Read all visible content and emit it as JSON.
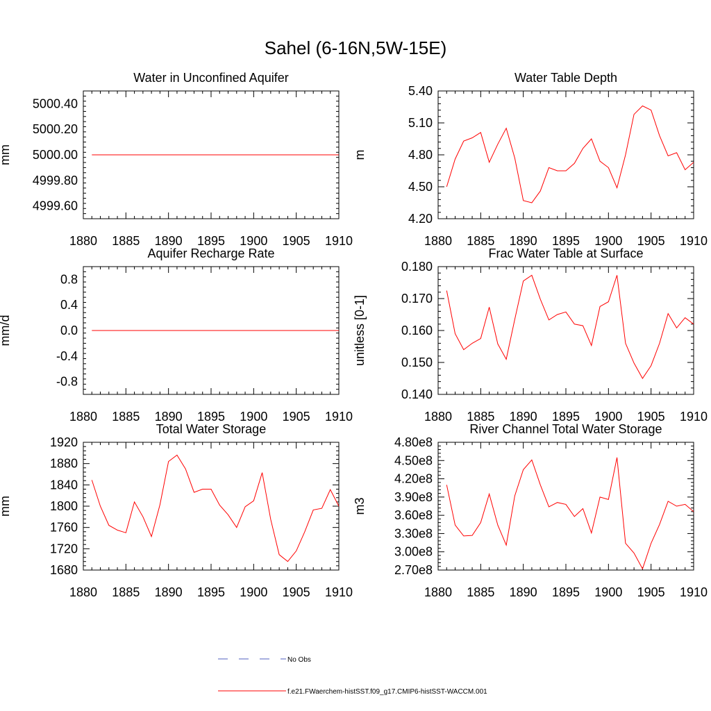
{
  "title": "Sahel (6-16N,5W-15E)",
  "colors": {
    "model": "#ff0000",
    "obs": "#4f5fbf",
    "axis": "#000000"
  },
  "chart_data": [
    {
      "type": "line",
      "title": "Water in Unconfined Aquifer",
      "ylabel": "mm",
      "xlim": [
        1880,
        1910
      ],
      "ylim": [
        4999.5,
        5000.5
      ],
      "x_ticks": [
        1880,
        1885,
        1890,
        1895,
        1900,
        1905,
        1910
      ],
      "y_ticks": [
        "5000.40",
        "5000.20",
        "5000.00",
        "4999.80",
        "4999.60"
      ],
      "y_tick_values": [
        5000.4,
        5000.2,
        5000.0,
        4999.8,
        4999.6
      ],
      "series": [
        {
          "x": [
            1881,
            1910
          ],
          "values": [
            5000.0,
            5000.0
          ]
        }
      ]
    },
    {
      "type": "line",
      "title": "Water Table Depth",
      "ylabel": "m",
      "xlim": [
        1880,
        1910
      ],
      "ylim": [
        4.2,
        5.4
      ],
      "x_ticks": [
        1880,
        1885,
        1890,
        1895,
        1900,
        1905,
        1910
      ],
      "y_ticks": [
        "5.40",
        "5.10",
        "4.80",
        "4.50",
        "4.20"
      ],
      "y_tick_values": [
        5.4,
        5.1,
        4.8,
        4.5,
        4.2
      ],
      "series": [
        {
          "x": [
            1881,
            1882,
            1883,
            1884,
            1885,
            1886,
            1887,
            1888,
            1889,
            1890,
            1891,
            1892,
            1893,
            1894,
            1895,
            1896,
            1897,
            1898,
            1899,
            1900,
            1901,
            1902,
            1903,
            1904,
            1905,
            1906,
            1907,
            1908,
            1909,
            1910
          ],
          "values": [
            4.5,
            4.76,
            4.93,
            4.96,
            5.01,
            4.73,
            4.9,
            5.05,
            4.77,
            4.37,
            4.35,
            4.46,
            4.68,
            4.65,
            4.65,
            4.72,
            4.86,
            4.95,
            4.74,
            4.68,
            4.49,
            4.8,
            5.18,
            5.26,
            5.22,
            4.98,
            4.79,
            4.82,
            4.66,
            4.73
          ]
        }
      ]
    },
    {
      "type": "line",
      "title": "Aquifer Recharge Rate",
      "ylabel": "mm/d",
      "xlim": [
        1880,
        1910
      ],
      "ylim": [
        -1.0,
        1.0
      ],
      "x_ticks": [
        1880,
        1885,
        1890,
        1895,
        1900,
        1905,
        1910
      ],
      "y_ticks": [
        "0.8",
        "0.4",
        "0.0",
        "-0.4",
        "-0.8"
      ],
      "y_tick_values": [
        0.8,
        0.4,
        0.0,
        -0.4,
        -0.8
      ],
      "series": [
        {
          "x": [
            1881,
            1910
          ],
          "values": [
            0.0,
            0.0
          ]
        }
      ]
    },
    {
      "type": "line",
      "title": "Frac Water Table at Surface",
      "ylabel": "unitless [0-1]",
      "xlim": [
        1880,
        1910
      ],
      "ylim": [
        0.14,
        0.18
      ],
      "x_ticks": [
        1880,
        1885,
        1890,
        1895,
        1900,
        1905,
        1910
      ],
      "y_ticks": [
        "0.180",
        "0.170",
        "0.160",
        "0.150",
        "0.140"
      ],
      "y_tick_values": [
        0.18,
        0.17,
        0.16,
        0.15,
        0.14
      ],
      "series": [
        {
          "x": [
            1881,
            1882,
            1883,
            1884,
            1885,
            1886,
            1887,
            1888,
            1889,
            1890,
            1891,
            1892,
            1893,
            1894,
            1895,
            1896,
            1897,
            1898,
            1899,
            1900,
            1901,
            1902,
            1903,
            1904,
            1905,
            1906,
            1907,
            1908,
            1909,
            1910
          ],
          "values": [
            0.1725,
            0.159,
            0.154,
            0.156,
            0.1575,
            0.1673,
            0.1558,
            0.151,
            0.1635,
            0.1755,
            0.1773,
            0.1698,
            0.1633,
            0.165,
            0.1658,
            0.162,
            0.1615,
            0.1553,
            0.1675,
            0.169,
            0.1773,
            0.156,
            0.1498,
            0.145,
            0.149,
            0.156,
            0.1653,
            0.1608,
            0.164,
            0.162
          ]
        }
      ]
    },
    {
      "type": "line",
      "title": "Total Water Storage",
      "ylabel": "mm",
      "xlim": [
        1880,
        1910
      ],
      "ylim": [
        1680,
        1920
      ],
      "x_ticks": [
        1880,
        1885,
        1890,
        1895,
        1900,
        1905,
        1910
      ],
      "y_ticks": [
        "1920",
        "1880",
        "1840",
        "1800",
        "1760",
        "1720",
        "1680"
      ],
      "y_tick_values": [
        1920,
        1880,
        1840,
        1800,
        1760,
        1720,
        1680
      ],
      "series": [
        {
          "x": [
            1881,
            1882,
            1883,
            1884,
            1885,
            1886,
            1887,
            1888,
            1889,
            1890,
            1891,
            1892,
            1893,
            1894,
            1895,
            1896,
            1897,
            1898,
            1899,
            1900,
            1901,
            1902,
            1903,
            1904,
            1905,
            1906,
            1907,
            1908,
            1909,
            1910
          ],
          "values": [
            1849,
            1800,
            1764,
            1755,
            1750,
            1808,
            1780,
            1743,
            1803,
            1884,
            1896,
            1870,
            1826,
            1832,
            1832,
            1802,
            1784,
            1760,
            1799,
            1810,
            1863,
            1775,
            1709,
            1696,
            1716,
            1752,
            1793,
            1796,
            1831,
            1800
          ]
        }
      ]
    },
    {
      "type": "line",
      "title": "River Channel Total Water Storage",
      "ylabel": "m3",
      "xlim": [
        1880,
        1910
      ],
      "ylim": [
        270000000,
        480000000
      ],
      "x_ticks": [
        1880,
        1885,
        1890,
        1895,
        1900,
        1905,
        1910
      ],
      "y_ticks": [
        "4.80e8",
        "4.50e8",
        "4.20e8",
        "3.90e8",
        "3.60e8",
        "3.30e8",
        "3.00e8",
        "2.70e8"
      ],
      "y_tick_values": [
        480000000,
        450000000,
        420000000,
        390000000,
        360000000,
        330000000,
        300000000,
        270000000
      ],
      "series": [
        {
          "x": [
            1881,
            1882,
            1883,
            1884,
            1885,
            1886,
            1887,
            1888,
            1889,
            1890,
            1891,
            1892,
            1893,
            1894,
            1895,
            1896,
            1897,
            1898,
            1899,
            1900,
            1901,
            1902,
            1903,
            1904,
            1905,
            1906,
            1907,
            1908,
            1909,
            1910
          ],
          "values": [
            410000000,
            344000000,
            326000000,
            327000000,
            348000000,
            395000000,
            344000000,
            311000000,
            392000000,
            435000000,
            451000000,
            410000000,
            374000000,
            381000000,
            378000000,
            358000000,
            371000000,
            331000000,
            390000000,
            386000000,
            455000000,
            314000000,
            298000000,
            272000000,
            314000000,
            345000000,
            383000000,
            375000000,
            378000000,
            366000000
          ]
        }
      ]
    }
  ],
  "legend": {
    "placement": "bottom-center",
    "items": [
      {
        "label": "No Obs",
        "style": "dashed",
        "color": "#4f5fbf"
      },
      {
        "label": "f.e21.FWaerchem-histSST.f09_g17.CMIP6-histSST-WACCM.001",
        "style": "solid",
        "color": "#ff0000"
      }
    ]
  }
}
